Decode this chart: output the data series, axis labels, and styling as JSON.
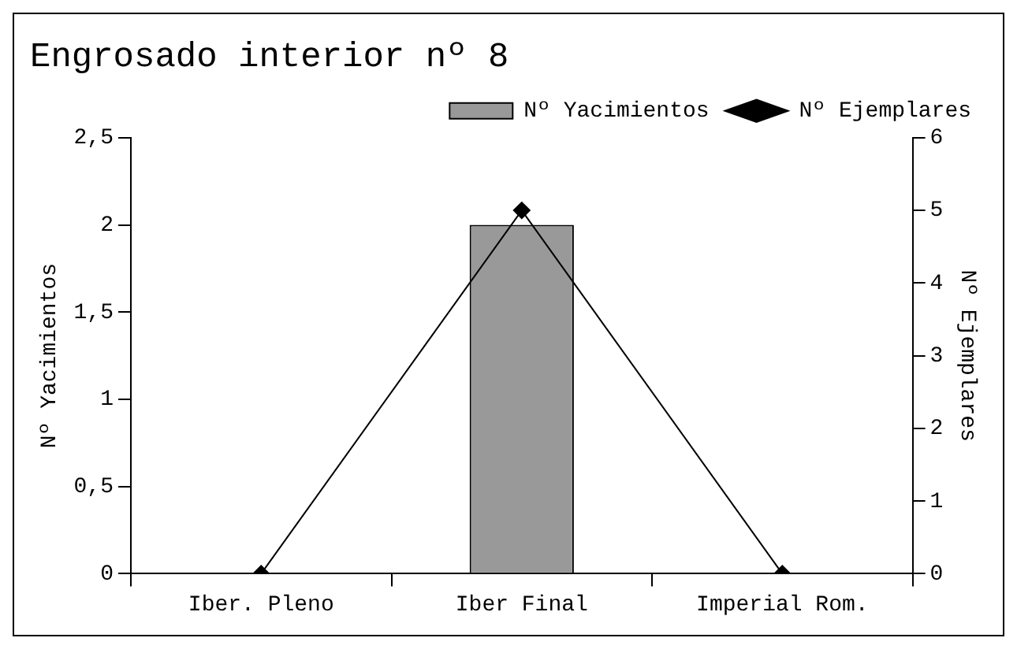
{
  "chart_data": {
    "type": "bar",
    "title": "Engrosado interior nº 8",
    "ylabel": "Nº Yacimientos",
    "y2label": "Nº Ejemplares",
    "categories": [
      "Iber. Pleno",
      "Iber Final",
      "Imperial Rom."
    ],
    "series": [
      {
        "name": "Nº Yacimientos",
        "color": "#999999",
        "values": [
          0,
          2,
          0
        ]
      },
      {
        "name": "Nº Ejemplares",
        "type": "line",
        "axis": "y2",
        "color": "#000000",
        "values": [
          0,
          5,
          0
        ],
        "marker": "diamond"
      }
    ],
    "ylim": [
      0,
      2.5
    ],
    "yticks": [
      0,
      {
        "value": 0.5,
        "label": "0,5"
      },
      1,
      {
        "value": 1.5,
        "label": "1,5"
      },
      2,
      {
        "value": 2.5,
        "label": "2,5"
      }
    ],
    "y2lim": [
      0,
      6
    ],
    "y2ticks": [
      0,
      1,
      2,
      3,
      4,
      5,
      6
    ],
    "grid": false,
    "legend": "top right"
  }
}
